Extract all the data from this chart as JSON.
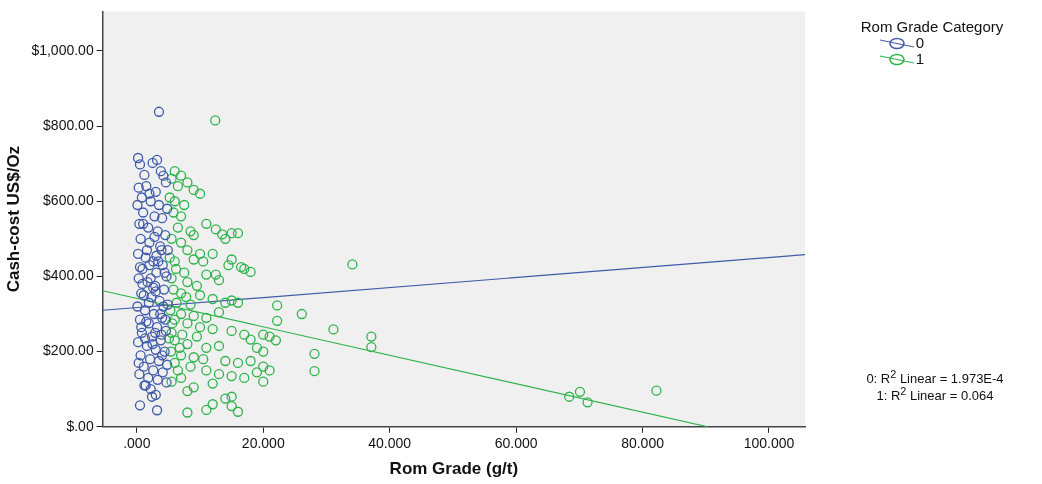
{
  "chart_data": {
    "type": "scatter",
    "xlabel": "Rom Grade (g/t)",
    "ylabel": "Cash-cost US$/Oz",
    "legend_title": "Rom Grade Category",
    "legend": "top right",
    "marker": "circle",
    "grid": false,
    "xlim": [
      -5.4,
      105.7
    ],
    "xticks": [
      {
        "value": 0,
        "label": ".000"
      },
      {
        "value": 20,
        "label": "20.000"
      },
      {
        "value": 40,
        "label": "40.000"
      },
      {
        "value": 60,
        "label": "60.000"
      },
      {
        "value": 80,
        "label": "80.000"
      },
      {
        "value": 100,
        "label": "100.000"
      }
    ],
    "ylim": [
      0,
      1105
    ],
    "yticks": [
      {
        "value": 0,
        "label": "$.00"
      },
      {
        "value": 200,
        "label": "$200.00"
      },
      {
        "value": 400,
        "label": "$400.00"
      },
      {
        "value": 600,
        "label": "$600.00"
      },
      {
        "value": 800,
        "label": "$800.00"
      },
      {
        "value": 1000,
        "label": "$1,000.00"
      }
    ],
    "annotations": [
      "0: R$^{2}$ Linear = 1.973E-4",
      "1: R$^{2}$ Linear = 0.064"
    ],
    "series": [
      {
        "name": "0",
        "color": "#3f5ba9",
        "x": [
          0.2,
          0.5,
          2.5,
          1.2,
          3.8,
          4.2,
          0.3,
          1.5,
          3.0,
          4.6,
          0.8,
          2.2,
          3.5,
          4.8,
          0.1,
          1.0,
          2.8,
          4.0,
          0.4,
          1.8,
          3.3,
          4.5,
          0.6,
          2.0,
          3.7,
          4.9,
          0.2,
          1.4,
          2.6,
          4.1,
          0.9,
          3.1,
          4.7,
          0.3,
          1.7,
          2.9,
          4.3,
          0.7,
          2.3,
          3.6,
          4.9,
          0.1,
          1.3,
          2.7,
          4.0,
          0.5,
          1.9,
          3.2,
          4.6,
          0.8,
          2.4,
          3.8,
          0.2,
          1.6,
          3.0,
          4.4,
          0.6,
          2.1,
          3.5,
          4.8,
          1.1,
          2.6,
          4.1,
          0.4,
          1.8,
          3.3,
          4.7,
          1.2,
          2.2,
          3.0,
          2.4,
          0.5,
          3.2,
          3.5,
          1.0,
          2.0,
          3.0,
          1.5,
          2.5,
          3.9,
          0.9,
          4.2,
          1.3,
          2.8,
          3.4,
          0.7,
          4.5,
          1.6,
          2.2,
          3.7,
          0.3,
          4.0,
          1.9,
          2.9,
          3.1,
          4.4,
          0.5,
          1.1,
          2.6,
          3.9,
          2.0,
          3.2,
          1.4
        ],
        "values": [
          715,
          698,
          702,
          670,
          680,
          668,
          636,
          640,
          625,
          650,
          610,
          600,
          590,
          580,
          590,
          570,
          560,
          555,
          540,
          530,
          520,
          510,
          500,
          490,
          480,
          470,
          460,
          450,
          440,
          430,
          420,
          410,
          400,
          395,
          385,
          375,
          365,
          355,
          345,
          335,
          325,
          320,
          310,
          300,
          290,
          285,
          275,
          265,
          255,
          250,
          240,
          230,
          225,
          215,
          205,
          200,
          190,
          180,
          175,
          165,
          160,
          150,
          145,
          140,
          130,
          125,
          118,
          110,
          100,
          85,
          80,
          57,
          44,
          838,
          540,
          430,
          360,
          280,
          220,
          470,
          380,
          320,
          235,
          505,
          440,
          265,
          285,
          470,
          395,
          300,
          170,
          190,
          330,
          250,
          455,
          410,
          425,
          350,
          370,
          245,
          620,
          710,
          110
        ]
      },
      {
        "name": "1",
        "color": "#2eb34a",
        "x": [
          6,
          7,
          5.5,
          8,
          6.5,
          9,
          10,
          5.2,
          6,
          7.5,
          5.8,
          7,
          11,
          12.5,
          13.5,
          15,
          16,
          14,
          6.5,
          8.5,
          9,
          5.5,
          7,
          8,
          10,
          12,
          15,
          5.2,
          6,
          9,
          14.5,
          16.5,
          17,
          18,
          6.2,
          7.5,
          11,
          13,
          5.5,
          8,
          9.5,
          5.8,
          7,
          10,
          12,
          14,
          15,
          16,
          6.3,
          8.5,
          22.2,
          26.1,
          5.3,
          7,
          9,
          11,
          13,
          6,
          22.2,
          8,
          10,
          12,
          31.1,
          15,
          5.5,
          7.2,
          9.5,
          17,
          20,
          18,
          21,
          22,
          37.1,
          37.1,
          6,
          8,
          11,
          13,
          19,
          20,
          5.4,
          7,
          9,
          28.1,
          14,
          16,
          18,
          20,
          21,
          6,
          8.5,
          11,
          19,
          28.1,
          13,
          15,
          17,
          20,
          7,
          12,
          9,
          8,
          12,
          14,
          15,
          11,
          15,
          16,
          8,
          5.5,
          6.5,
          10.5,
          7.8,
          5.1,
          5.6,
          6.8,
          34.1,
          12.4,
          68.4,
          70.1,
          71.3,
          82.2,
          12.5,
          10.5
        ],
        "values": [
          680,
          668,
          660,
          650,
          640,
          630,
          620,
          610,
          600,
          590,
          570,
          560,
          540,
          525,
          512,
          515,
          515,
          500,
          530,
          520,
          510,
          500,
          490,
          470,
          460,
          460,
          445,
          450,
          440,
          445,
          430,
          425,
          420,
          412,
          420,
          410,
          405,
          390,
          395,
          385,
          375,
          365,
          355,
          350,
          340,
          330,
          336,
          330,
          330,
          325,
          323,
          300,
          310,
          300,
          295,
          290,
          305,
          285,
          282,
          275,
          265,
          260,
          259,
          255,
          250,
          245,
          240,
          245,
          245,
          232,
          240,
          230,
          240,
          212,
          230,
          220,
          210,
          215,
          210,
          200,
          200,
          190,
          185,
          194,
          175,
          170,
          175,
          160,
          150,
          170,
          160,
          150,
          145,
          148,
          140,
          135,
          130,
          120,
          130,
          115,
          105,
          95,
          60,
          75,
          80,
          45,
          55,
          40,
          38,
          120,
          150,
          180,
          345,
          235,
          275,
          210,
          432,
          815,
          80,
          93,
          65,
          96,
          405,
          440
        ]
      },
      {
        "type": "line",
        "marker": "none",
        "color": "#3f5ba9",
        "x": [
          -5.4,
          105.7
        ],
        "values": [
          310,
          458
        ]
      },
      {
        "type": "line",
        "marker": "none",
        "color": "#2eb34a",
        "x": [
          -5.4,
          90.3
        ],
        "values": [
          362,
          0
        ]
      }
    ]
  }
}
